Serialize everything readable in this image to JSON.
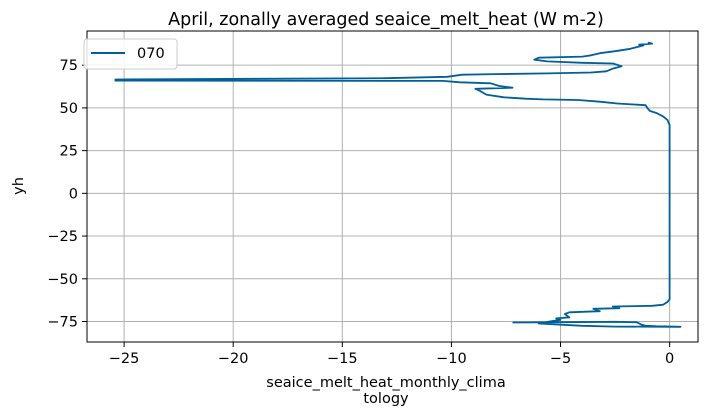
{
  "chart_data": {
    "type": "line",
    "title": "April, zonally averaged seaice_melt_heat (W m-2)",
    "xlabel_lines": [
      "seaice_melt_heat_monthly_clima",
      "tology"
    ],
    "ylabel": "yh",
    "xlim": [
      -26.7,
      1.3
    ],
    "ylim": [
      -87,
      95
    ],
    "xticks": [
      -25,
      -20,
      -15,
      -10,
      -5,
      0
    ],
    "xtick_labels": [
      "−25",
      "−20",
      "−15",
      "−10",
      "−5",
      "0"
    ],
    "yticks": [
      -75,
      -50,
      -25,
      0,
      25,
      50,
      75
    ],
    "ytick_labels": [
      "−75",
      "−50",
      "−25",
      "0",
      "25",
      "50",
      "75"
    ],
    "grid": true,
    "legend_position": "top-left",
    "colors": {
      "series": "#005f99",
      "grid": "#b0b0b0"
    },
    "series": [
      {
        "name": "070",
        "points": [
          [
            -7.2,
            -75.6
          ],
          [
            -5.0,
            -75.4
          ],
          [
            -2.5,
            -75.2
          ],
          [
            -1.5,
            -75.5
          ],
          [
            -1.3,
            -76.8
          ],
          [
            -1.1,
            -77.5
          ],
          [
            -0.6,
            -77.8
          ],
          [
            0.5,
            -78.1
          ],
          [
            -2.5,
            -78.0
          ],
          [
            -4.0,
            -77.5
          ],
          [
            -6.0,
            -76.2
          ],
          [
            -5.5,
            -75.0
          ],
          [
            -5.0,
            -74.0
          ],
          [
            -5.2,
            -73.2
          ],
          [
            -4.6,
            -72.6
          ],
          [
            -4.8,
            -70.6
          ],
          [
            -4.6,
            -69.6
          ],
          [
            -3.2,
            -69.0
          ],
          [
            -3.5,
            -67.6
          ],
          [
            -2.3,
            -67.2
          ],
          [
            -2.6,
            -66.2
          ],
          [
            -0.8,
            -65.8
          ],
          [
            -0.3,
            -65.2
          ],
          [
            -0.1,
            -63.6
          ],
          [
            0.0,
            -62.0
          ],
          [
            0.0,
            -40.0
          ],
          [
            0.0,
            -10.0
          ],
          [
            0.0,
            20.0
          ],
          [
            0.0,
            40.0
          ],
          [
            -0.1,
            43.0
          ],
          [
            -0.3,
            45.0
          ],
          [
            -0.6,
            47.0
          ],
          [
            -0.9,
            48.2
          ],
          [
            -1.0,
            49.6
          ],
          [
            -1.1,
            51.6
          ],
          [
            -2.4,
            52.6
          ],
          [
            -3.2,
            53.6
          ],
          [
            -4.2,
            54.6
          ],
          [
            -5.8,
            55.0
          ],
          [
            -6.6,
            55.4
          ],
          [
            -7.6,
            56.2
          ],
          [
            -8.4,
            57.8
          ],
          [
            -8.7,
            60.0
          ],
          [
            -8.9,
            61.2
          ],
          [
            -7.2,
            61.8
          ],
          [
            -7.8,
            62.8
          ],
          [
            -8.2,
            64.4
          ],
          [
            -9.6,
            65.0
          ],
          [
            -10.4,
            65.8
          ],
          [
            -25.4,
            66.0
          ],
          [
            -25.4,
            66.6
          ],
          [
            -13.0,
            67.4
          ],
          [
            -10.2,
            68.2
          ],
          [
            -9.5,
            69.4
          ],
          [
            -8.0,
            69.8
          ],
          [
            -5.6,
            70.2
          ],
          [
            -3.6,
            70.7
          ],
          [
            -2.9,
            71.4
          ],
          [
            -2.6,
            73.0
          ],
          [
            -2.2,
            74.4
          ],
          [
            -2.6,
            76.0
          ],
          [
            -4.0,
            76.4
          ],
          [
            -5.6,
            77.2
          ],
          [
            -6.2,
            78.2
          ],
          [
            -6.0,
            79.4
          ],
          [
            -4.0,
            80.0
          ],
          [
            -3.6,
            80.8
          ],
          [
            -3.2,
            82.0
          ],
          [
            -2.5,
            83.2
          ],
          [
            -1.8,
            84.6
          ],
          [
            -1.5,
            85.6
          ],
          [
            -1.2,
            86.6
          ],
          [
            -1.4,
            87.0
          ],
          [
            -0.8,
            87.6
          ],
          [
            -1.0,
            88.2
          ]
        ]
      }
    ]
  }
}
